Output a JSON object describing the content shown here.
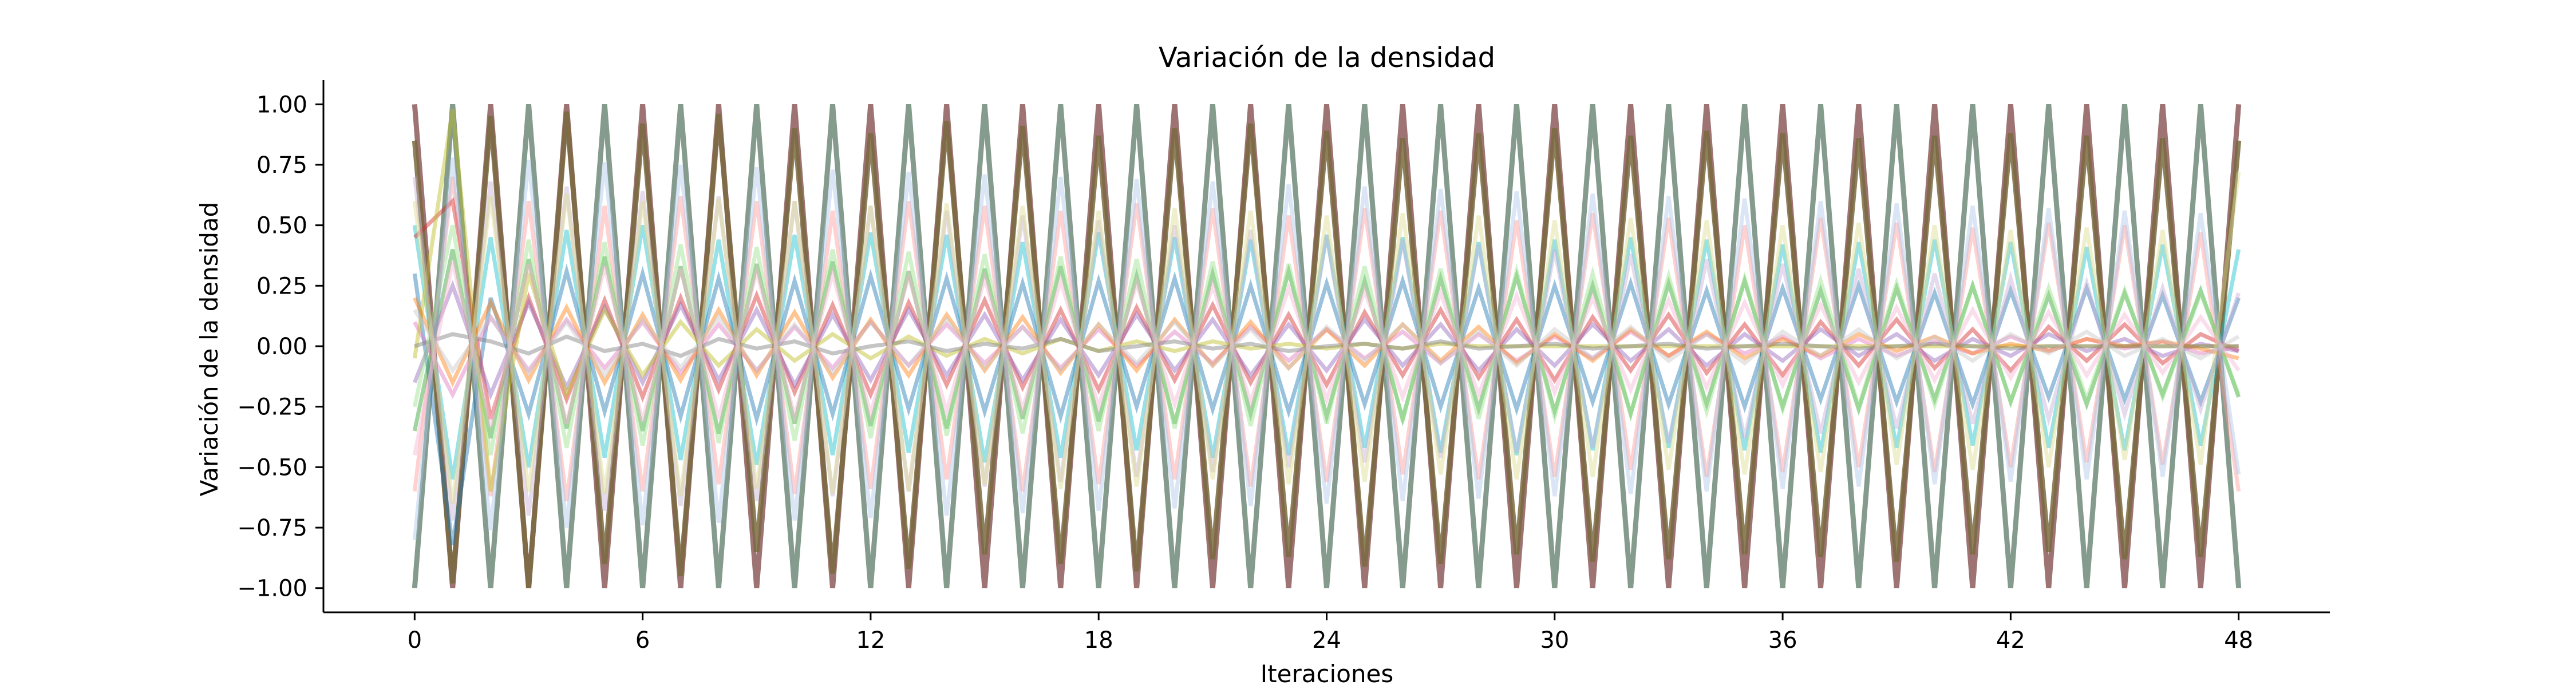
{
  "chart_data": {
    "type": "line",
    "title": "Variación de la densidad",
    "xlabel": "Iteraciones",
    "ylabel": "Variación de la densidad",
    "xlim": [
      -2.4,
      50.4
    ],
    "ylim": [
      -1.1,
      1.1
    ],
    "xticks": [
      0,
      6,
      12,
      18,
      24,
      30,
      36,
      42,
      48
    ],
    "xtick_labels": [
      "0",
      "6",
      "12",
      "18",
      "24",
      "30",
      "36",
      "42",
      "48"
    ],
    "yticks": [
      1.0,
      0.75,
      0.5,
      0.25,
      0.0,
      -0.25,
      -0.5,
      -0.75,
      -1.0
    ],
    "ytick_labels": [
      "1.00",
      "0.75",
      "0.50",
      "0.25",
      "0.00",
      "−0.25",
      "−0.50",
      "−0.75",
      "−1.00"
    ],
    "grid": false,
    "legend": "none",
    "x": [
      0,
      1,
      2,
      3,
      4,
      5,
      6,
      7,
      8,
      9,
      10,
      11,
      12,
      13,
      14,
      15,
      16,
      17,
      18,
      19,
      20,
      21,
      22,
      23,
      24,
      25,
      26,
      27,
      28,
      29,
      30,
      31,
      32,
      33,
      34,
      35,
      36,
      37,
      38,
      39,
      40,
      41,
      42,
      43,
      44,
      45,
      46,
      47,
      48
    ],
    "series_style": "many semi-transparent overlapping lines; dominant series alternate between +1 and −1 each iteration, with many smaller-amplitude series oscillating around 0",
    "series": [
      {
        "color": "#8c5a5a",
        "values": [
          1.0,
          -1.0,
          1.0,
          -1.0,
          1.0,
          -1.0,
          1.0,
          -1.0,
          1.0,
          -1.0,
          1.0,
          -1.0,
          1.0,
          -1.0,
          1.0,
          -1.0,
          1.0,
          -1.0,
          1.0,
          -1.0,
          1.0,
          -1.0,
          1.0,
          -1.0,
          1.0,
          -1.0,
          1.0,
          -1.0,
          1.0,
          -1.0,
          1.0,
          -1.0,
          1.0,
          -1.0,
          1.0,
          -1.0,
          1.0,
          -1.0,
          1.0,
          -1.0,
          1.0,
          -1.0,
          1.0,
          -1.0,
          1.0,
          -1.0,
          1.0,
          -1.0,
          1.0
        ]
      },
      {
        "color": "#6e8a7a",
        "values": [
          -1.0,
          1.0,
          -1.0,
          1.0,
          -1.0,
          1.0,
          -1.0,
          1.0,
          -1.0,
          1.0,
          -1.0,
          1.0,
          -1.0,
          1.0,
          -1.0,
          1.0,
          -1.0,
          1.0,
          -1.0,
          1.0,
          -1.0,
          1.0,
          -1.0,
          1.0,
          -1.0,
          1.0,
          -1.0,
          1.0,
          -1.0,
          1.0,
          -1.0,
          1.0,
          -1.0,
          1.0,
          -1.0,
          1.0,
          -1.0,
          1.0,
          -1.0,
          1.0,
          -1.0,
          1.0,
          -1.0,
          1.0,
          -1.0,
          1.0,
          -1.0,
          1.0,
          -1.0
        ]
      },
      {
        "color": "#7a6a40",
        "values": [
          0.85,
          -0.98,
          0.95,
          -1.0,
          0.97,
          -0.9,
          0.92,
          -0.95,
          0.96,
          -0.85,
          0.9,
          -0.94,
          0.88,
          -0.92,
          0.93,
          -0.86,
          0.91,
          -0.9,
          0.87,
          -0.93,
          0.9,
          -0.88,
          0.92,
          -0.87,
          0.89,
          -0.91,
          0.86,
          -0.9,
          0.88,
          -0.86,
          0.9,
          -0.89,
          0.87,
          -0.88,
          0.89,
          -0.86,
          0.88,
          -0.87,
          0.86,
          -0.89,
          0.87,
          -0.86,
          0.88,
          -0.85,
          0.87,
          -0.88,
          0.86,
          -0.87,
          0.85
        ]
      },
      {
        "color": "#17becf",
        "values": [
          0.5,
          -0.55,
          0.45,
          -0.5,
          0.48,
          -0.46,
          0.5,
          -0.47,
          0.44,
          -0.49,
          0.46,
          -0.45,
          0.47,
          -0.44,
          0.46,
          -0.48,
          0.43,
          -0.46,
          0.47,
          -0.43,
          0.45,
          -0.46,
          0.44,
          -0.45,
          0.46,
          -0.42,
          0.45,
          -0.44,
          0.43,
          -0.45,
          0.44,
          -0.43,
          0.45,
          -0.42,
          0.44,
          -0.43,
          0.42,
          -0.44,
          0.43,
          -0.42,
          0.44,
          -0.41,
          0.43,
          -0.42,
          0.41,
          -0.43,
          0.42,
          -0.41,
          0.4
        ]
      },
      {
        "color": "#ff9896",
        "values": [
          -0.6,
          0.7,
          -0.62,
          0.6,
          -0.64,
          0.58,
          -0.6,
          0.62,
          -0.57,
          0.6,
          -0.61,
          0.56,
          -0.59,
          0.6,
          -0.55,
          0.58,
          -0.6,
          0.56,
          -0.57,
          0.59,
          -0.55,
          0.57,
          -0.58,
          0.54,
          -0.56,
          0.57,
          -0.53,
          0.56,
          -0.55,
          0.52,
          -0.54,
          0.55,
          -0.51,
          0.53,
          -0.54,
          0.5,
          -0.52,
          0.53,
          -0.5,
          0.51,
          -0.52,
          0.49,
          -0.5,
          0.51,
          -0.48,
          0.5,
          -0.49,
          0.47,
          -0.6
        ]
      },
      {
        "color": "#1f77b4",
        "values": [
          0.3,
          -0.82,
          0.2,
          -0.28,
          0.31,
          -0.27,
          0.3,
          -0.29,
          0.28,
          -0.3,
          0.27,
          -0.28,
          0.29,
          -0.26,
          0.28,
          -0.27,
          0.26,
          -0.29,
          0.27,
          -0.25,
          0.28,
          -0.26,
          0.25,
          -0.27,
          0.26,
          -0.24,
          0.27,
          -0.25,
          0.24,
          -0.26,
          0.25,
          -0.23,
          0.26,
          -0.24,
          0.23,
          -0.25,
          0.24,
          -0.22,
          0.25,
          -0.23,
          0.22,
          -0.24,
          0.23,
          -0.21,
          0.24,
          -0.22,
          0.21,
          -0.23,
          0.2
        ]
      },
      {
        "color": "#2ca02c",
        "values": [
          -0.35,
          0.4,
          -0.38,
          0.36,
          -0.34,
          0.37,
          -0.35,
          0.33,
          -0.36,
          0.34,
          -0.32,
          0.35,
          -0.33,
          0.31,
          -0.34,
          0.32,
          -0.3,
          0.33,
          -0.31,
          0.29,
          -0.32,
          0.3,
          -0.28,
          0.31,
          -0.29,
          0.27,
          -0.3,
          0.28,
          -0.26,
          0.29,
          -0.27,
          0.25,
          -0.28,
          0.26,
          -0.24,
          0.27,
          -0.25,
          0.23,
          -0.26,
          0.24,
          -0.22,
          0.25,
          -0.23,
          0.21,
          -0.24,
          0.22,
          -0.2,
          0.23,
          -0.21
        ]
      },
      {
        "color": "#d62728",
        "values": [
          0.45,
          0.6,
          -0.3,
          0.2,
          -0.22,
          0.19,
          -0.21,
          0.2,
          -0.18,
          0.21,
          -0.19,
          0.17,
          -0.2,
          0.18,
          -0.16,
          0.19,
          -0.17,
          0.15,
          -0.18,
          0.16,
          -0.14,
          0.17,
          -0.15,
          0.13,
          -0.16,
          0.14,
          -0.12,
          0.15,
          -0.13,
          0.11,
          -0.14,
          0.12,
          -0.1,
          0.13,
          -0.11,
          0.09,
          -0.12,
          0.1,
          -0.08,
          0.11,
          -0.09,
          0.07,
          -0.1,
          0.08,
          -0.06,
          0.09,
          -0.07,
          0.05,
          -0.02
        ]
      },
      {
        "color": "#9467bd",
        "values": [
          -0.15,
          0.25,
          -0.2,
          0.18,
          -0.17,
          0.16,
          -0.15,
          0.17,
          -0.14,
          0.15,
          -0.16,
          0.13,
          -0.14,
          0.15,
          -0.12,
          0.13,
          -0.14,
          0.11,
          -0.12,
          0.13,
          -0.1,
          0.11,
          -0.12,
          0.09,
          -0.1,
          0.11,
          -0.08,
          0.09,
          -0.1,
          0.07,
          -0.08,
          0.09,
          -0.06,
          0.07,
          -0.08,
          0.05,
          -0.06,
          0.07,
          -0.04,
          0.05,
          -0.06,
          0.03,
          -0.04,
          0.05,
          -0.02,
          0.03,
          -0.04,
          0.01,
          -0.02
        ]
      },
      {
        "color": "#e377c2",
        "values": [
          0.1,
          -0.2,
          0.12,
          -0.1,
          0.11,
          -0.09,
          0.1,
          -0.11,
          0.09,
          -0.1,
          0.08,
          -0.09,
          0.1,
          -0.08,
          0.09,
          -0.07,
          0.08,
          -0.09,
          0.07,
          -0.08,
          0.06,
          -0.07,
          0.08,
          -0.06,
          0.07,
          -0.05,
          0.06,
          -0.07,
          0.05,
          -0.06,
          0.04,
          -0.05,
          0.06,
          -0.04,
          0.05,
          -0.03,
          0.04,
          -0.05,
          0.03,
          -0.04,
          0.02,
          -0.03,
          0.04,
          -0.02,
          0.03,
          -0.01,
          0.02,
          -0.03,
          0.0
        ]
      },
      {
        "color": "#bcbd22",
        "values": [
          -0.05,
          0.98,
          -0.6,
          0.3,
          -0.2,
          0.15,
          -0.12,
          0.1,
          -0.08,
          0.07,
          -0.06,
          0.05,
          -0.05,
          0.04,
          -0.04,
          0.03,
          -0.03,
          0.03,
          -0.02,
          0.02,
          -0.02,
          0.02,
          -0.01,
          0.01,
          -0.01,
          0.01,
          -0.01,
          0.01,
          0.0,
          0.0,
          0.0,
          0.0,
          0.0,
          0.0,
          0.0,
          0.0,
          0.0,
          0.0,
          0.0,
          0.0,
          0.0,
          0.0,
          0.0,
          0.0,
          0.0,
          0.0,
          0.0,
          0.0,
          0.0
        ]
      },
      {
        "color": "#ff7f0e",
        "values": [
          0.2,
          -0.15,
          0.18,
          -0.14,
          0.16,
          -0.15,
          0.13,
          -0.14,
          0.15,
          -0.12,
          0.14,
          -0.13,
          0.11,
          -0.12,
          0.13,
          -0.1,
          0.12,
          -0.11,
          0.09,
          -0.1,
          0.11,
          -0.08,
          0.1,
          -0.09,
          0.07,
          -0.08,
          0.09,
          -0.06,
          0.08,
          -0.07,
          0.05,
          -0.06,
          0.07,
          -0.04,
          0.06,
          -0.05,
          0.03,
          -0.04,
          0.05,
          -0.02,
          0.04,
          -0.03,
          0.01,
          -0.02,
          0.03,
          0.0,
          0.02,
          -0.01,
          -0.05
        ]
      },
      {
        "color": "#7f7f7f",
        "values": [
          0.0,
          0.05,
          0.02,
          -0.03,
          0.04,
          -0.02,
          0.01,
          -0.04,
          0.03,
          -0.01,
          0.02,
          -0.03,
          0.0,
          0.02,
          -0.02,
          0.01,
          -0.01,
          0.03,
          -0.02,
          0.0,
          0.02,
          -0.01,
          0.01,
          -0.02,
          0.0,
          0.01,
          -0.01,
          0.02,
          -0.01,
          0.0,
          0.01,
          -0.01,
          0.0,
          0.01,
          -0.01,
          0.0,
          0.01,
          0.0,
          -0.01,
          0.0,
          0.01,
          0.0,
          -0.01,
          0.0,
          0.0,
          0.0,
          0.0,
          0.0,
          0.0
        ]
      },
      {
        "color": "#98df8a",
        "values": [
          -0.25,
          0.5,
          -0.45,
          0.44,
          -0.42,
          0.43,
          -0.41,
          0.42,
          -0.4,
          0.41,
          -0.39,
          0.4,
          -0.38,
          0.39,
          -0.37,
          0.38,
          -0.36,
          0.37,
          -0.35,
          0.36,
          -0.34,
          0.35,
          -0.33,
          0.34,
          -0.32,
          0.33,
          -0.31,
          0.32,
          -0.3,
          0.31,
          -0.29,
          0.3,
          -0.28,
          0.29,
          -0.27,
          0.28,
          -0.26,
          0.27,
          -0.25,
          0.26,
          -0.24,
          0.25,
          -0.23,
          0.24,
          -0.22,
          0.23,
          -0.21,
          0.22,
          -0.2
        ]
      },
      {
        "color": "#c5b0d5",
        "values": [
          0.7,
          -0.72,
          0.68,
          -0.7,
          0.66,
          -0.68,
          0.64,
          -0.66,
          0.62,
          -0.64,
          0.6,
          -0.62,
          0.58,
          -0.6,
          0.56,
          -0.58,
          0.54,
          -0.56,
          0.52,
          -0.54,
          0.5,
          -0.52,
          0.48,
          -0.5,
          0.46,
          -0.48,
          0.44,
          -0.46,
          0.42,
          -0.44,
          0.4,
          -0.42,
          0.38,
          -0.4,
          0.36,
          -0.38,
          0.34,
          -0.36,
          0.32,
          -0.34,
          0.3,
          -0.32,
          0.28,
          -0.3,
          0.26,
          -0.28,
          0.24,
          -0.26,
          0.22
        ]
      },
      {
        "color": "#aec7e8",
        "values": [
          -0.8,
          0.78,
          -0.76,
          0.77,
          -0.75,
          0.76,
          -0.74,
          0.75,
          -0.73,
          0.74,
          -0.72,
          0.73,
          -0.71,
          0.72,
          -0.7,
          0.71,
          -0.69,
          0.7,
          -0.68,
          0.69,
          -0.67,
          0.68,
          -0.66,
          0.67,
          -0.65,
          0.66,
          -0.64,
          0.65,
          -0.63,
          0.64,
          -0.62,
          0.63,
          -0.61,
          0.62,
          -0.6,
          0.61,
          -0.59,
          0.6,
          -0.58,
          0.59,
          -0.57,
          0.58,
          -0.56,
          0.57,
          -0.55,
          0.56,
          -0.54,
          0.55,
          -0.53
        ]
      },
      {
        "color": "#dbdb8d",
        "values": [
          0.6,
          -0.65,
          0.62,
          -0.6,
          0.63,
          -0.61,
          0.6,
          -0.62,
          0.61,
          -0.59,
          0.6,
          -0.61,
          0.58,
          -0.6,
          0.59,
          -0.57,
          0.58,
          -0.59,
          0.56,
          -0.58,
          0.57,
          -0.55,
          0.56,
          -0.57,
          0.54,
          -0.56,
          0.55,
          -0.53,
          0.54,
          -0.55,
          0.52,
          -0.54,
          0.53,
          -0.51,
          0.52,
          -0.53,
          0.5,
          -0.52,
          0.51,
          -0.49,
          0.5,
          -0.51,
          0.48,
          -0.5,
          0.49,
          -0.47,
          0.48,
          -0.49,
          0.72
        ]
      },
      {
        "color": "#f7b6d2",
        "values": [
          -0.45,
          0.35,
          -0.33,
          0.34,
          -0.32,
          0.33,
          -0.31,
          0.32,
          -0.3,
          0.31,
          -0.29,
          0.3,
          -0.28,
          0.29,
          -0.27,
          0.28,
          -0.26,
          0.27,
          -0.25,
          0.26,
          -0.24,
          0.25,
          -0.23,
          0.24,
          -0.22,
          0.23,
          -0.21,
          0.22,
          -0.2,
          0.21,
          -0.19,
          0.2,
          -0.18,
          0.19,
          -0.17,
          0.18,
          -0.16,
          0.17,
          -0.15,
          0.16,
          -0.14,
          0.15,
          -0.13,
          0.14,
          -0.12,
          0.13,
          -0.11,
          0.12,
          -0.1
        ]
      },
      {
        "color": "#c7c7c7",
        "values": [
          0.15,
          -0.1,
          0.12,
          -0.11,
          0.1,
          -0.12,
          0.11,
          -0.09,
          0.12,
          -0.1,
          0.09,
          -0.11,
          0.1,
          -0.08,
          0.11,
          -0.09,
          0.08,
          -0.1,
          0.09,
          -0.07,
          0.1,
          -0.08,
          0.07,
          -0.09,
          0.08,
          -0.06,
          0.09,
          -0.07,
          0.06,
          -0.08,
          0.07,
          -0.05,
          0.08,
          -0.06,
          0.05,
          -0.07,
          0.06,
          -0.04,
          0.07,
          -0.05,
          0.04,
          -0.06,
          0.05,
          -0.03,
          0.06,
          -0.04,
          0.03,
          -0.05,
          0.04
        ]
      }
    ]
  }
}
